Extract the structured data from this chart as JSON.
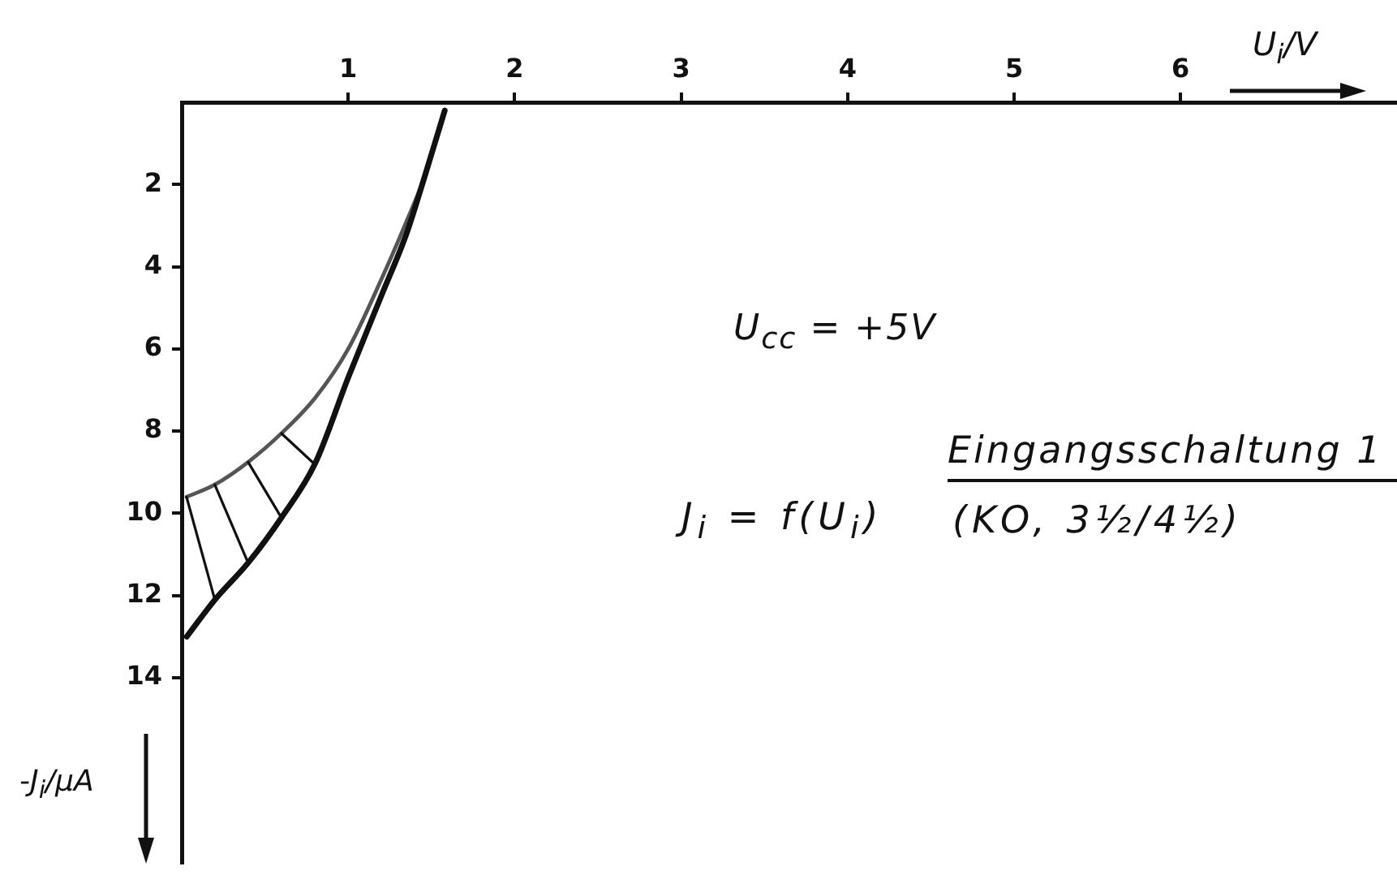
{
  "chart_data": {
    "type": "line",
    "xlabel": "U$_{i}$/V",
    "ylabel": "-J$_{i}$/µA",
    "annotations": [
      "U$_{cc}$ = +5V",
      "J$_{i}$ = f(U$_{i}$)",
      "Eingangsschaltung 1",
      "(KO, 3½/4½)"
    ],
    "xlim": [
      0,
      7.3
    ],
    "ylim": [
      18.5,
      0
    ],
    "xticks": [
      1,
      2,
      3,
      4,
      5,
      6
    ],
    "yticks": [
      2,
      4,
      6,
      8,
      10,
      12,
      14
    ],
    "grid": false,
    "legend": false,
    "marker": "none",
    "series": [
      {
        "color": "#111111",
        "x": [
          0.03,
          0.2,
          0.4,
          0.6,
          0.8,
          1.0,
          1.2,
          1.35,
          1.46,
          1.58
        ],
        "values": [
          13.0,
          12.1,
          11.2,
          10.1,
          8.8,
          6.7,
          4.7,
          3.2,
          1.8,
          0.2
        ]
      },
      {
        "color": "#555555",
        "x": [
          0.03,
          0.2,
          0.4,
          0.6,
          0.8,
          1.0,
          1.2,
          1.35,
          1.46,
          1.58
        ],
        "values": [
          9.6,
          9.3,
          8.75,
          8.05,
          7.2,
          6.0,
          4.3,
          2.9,
          1.8,
          0.2
        ]
      }
    ]
  }
}
